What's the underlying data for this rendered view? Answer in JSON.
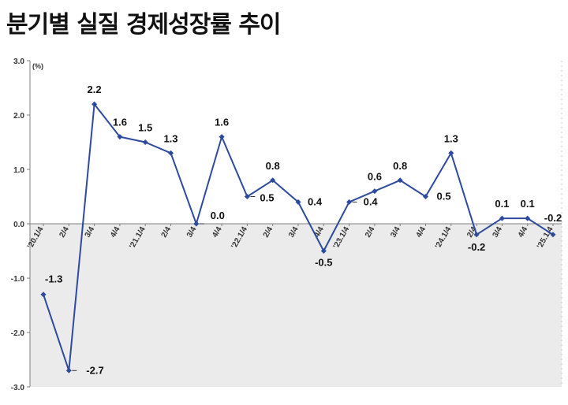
{
  "title": "분기별 실질 경제성장률 추이",
  "colors": {
    "line": "#2E4A9E",
    "negative_band": "#EBEBEB",
    "axis": "#7F7F7F"
  },
  "chart_data": {
    "type": "line",
    "title": "분기별 실질 경제성장률 추이",
    "ylabel": "(%)",
    "ylim": [
      -3.0,
      3.0
    ],
    "yticks": [
      "3.0",
      "2.0",
      "1.0",
      "0.0",
      "-1.0",
      "-2.0",
      "-3.0"
    ],
    "ytick_values": [
      3,
      2,
      1,
      0,
      -1,
      -2,
      -3
    ],
    "grid": false,
    "negative_region_shaded": true,
    "categories": [
      "'20.1/4",
      "2/4",
      "3/4",
      "4/4",
      "'21.1/4",
      "2/4",
      "3/4",
      "4/4",
      "'22.1/4",
      "2/4",
      "3/4",
      "4/4",
      "'23.1/4",
      "2/4",
      "3/4",
      "4/4",
      "'24.1/4",
      "2/4",
      "3/4",
      "4/4",
      "'25.1/4"
    ],
    "series": [
      {
        "values": [
          -1.3,
          -2.7,
          2.2,
          1.6,
          1.5,
          1.3,
          0.0,
          1.6,
          0.5,
          0.8,
          0.4,
          -0.5,
          0.4,
          0.6,
          0.8,
          0.5,
          1.3,
          -0.2,
          0.1,
          0.1,
          -0.2
        ],
        "labels": [
          "-1.3",
          "-2.7",
          "2.2",
          "1.6",
          "1.5",
          "1.3",
          "0.0",
          "1.6",
          "0.5",
          "0.8",
          "0.4",
          "-0.5",
          "0.4",
          "0.6",
          "0.8",
          "0.5",
          "1.3",
          "-0.2",
          "0.1",
          "0.1",
          "-0.2"
        ]
      }
    ]
  }
}
